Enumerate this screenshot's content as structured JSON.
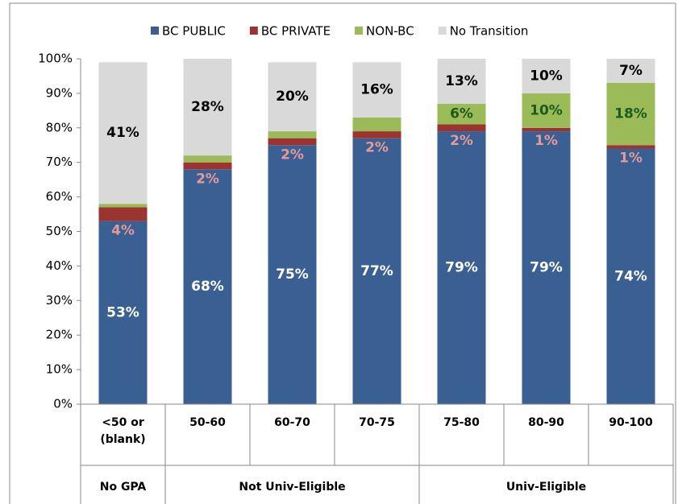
{
  "chart_data": {
    "type": "stacked-bar",
    "categories": [
      "<50 or\n(blank)",
      "50-60",
      "60-70",
      "70-75",
      "75-80",
      "80-90",
      "90-100"
    ],
    "category_groups": [
      "No GPA",
      "Not Univ-Eligible",
      "Not Univ-Eligible",
      "Not Univ-Eligible",
      "Univ-Eligible",
      "Univ-Eligible",
      "Univ-Eligible"
    ],
    "series": [
      {
        "name": "BC PUBLIC",
        "color": "#3a5f93",
        "label_color": "#ffffff",
        "values": [
          53,
          68,
          75,
          77,
          79,
          79,
          74
        ],
        "value_labels": [
          "53%",
          "68%",
          "75%",
          "77%",
          "79%",
          "79%",
          "74%"
        ]
      },
      {
        "name": "BC PRIVATE",
        "color": "#9b3430",
        "label_color": "#e69a96",
        "values": [
          4,
          2,
          2,
          2,
          2,
          1,
          1
        ],
        "value_labels": [
          "4%",
          "2%",
          "2%",
          "2%",
          "2%",
          "1%",
          "1%"
        ]
      },
      {
        "name": "NON-BC",
        "color": "#9bbb59",
        "label_color": "#1d5a1d",
        "values": [
          1,
          2,
          2,
          4,
          6,
          10,
          18
        ],
        "value_labels": [
          "1%",
          "2%",
          "2%",
          "4%",
          "6%",
          "10%",
          "18%"
        ]
      },
      {
        "name": "No Transition",
        "color": "#d9d9d9",
        "label_color": "#000000",
        "values": [
          41,
          28,
          20,
          16,
          13,
          10,
          7
        ],
        "value_labels": [
          "41%",
          "28%",
          "20%",
          "16%",
          "13%",
          "10%",
          "7%"
        ]
      }
    ],
    "ylim": [
      0,
      100
    ],
    "yticks": [
      {
        "value": 0,
        "label": "0%"
      },
      {
        "value": 10,
        "label": "10%"
      },
      {
        "value": 20,
        "label": "20%"
      },
      {
        "value": 30,
        "label": "30%"
      },
      {
        "value": 40,
        "label": "40%"
      },
      {
        "value": 50,
        "label": "50%"
      },
      {
        "value": 60,
        "label": "60%"
      },
      {
        "value": 70,
        "label": "70%"
      },
      {
        "value": 80,
        "label": "80%"
      },
      {
        "value": 90,
        "label": "90%"
      },
      {
        "value": 100,
        "label": "100%"
      }
    ],
    "grid": false,
    "legend": "top"
  }
}
